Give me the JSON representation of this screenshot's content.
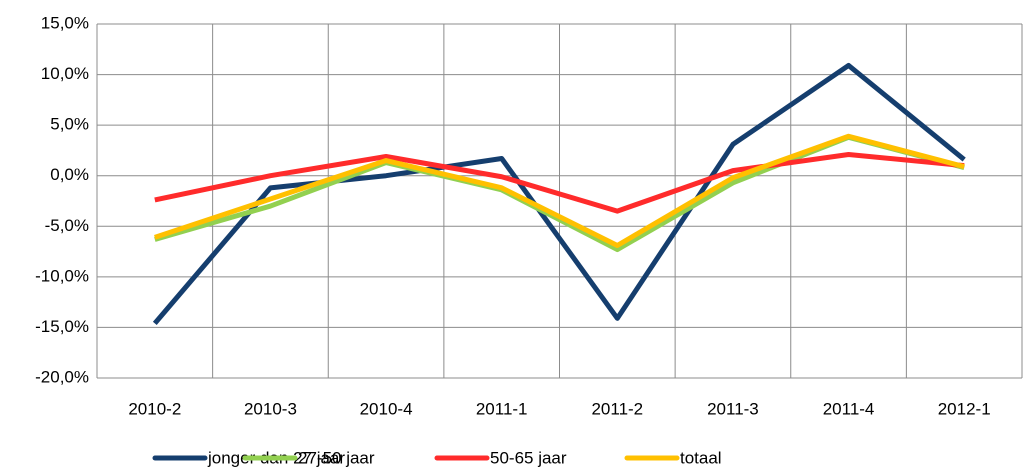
{
  "chart_data": {
    "type": "line",
    "categories": [
      "2010-2",
      "2010-3",
      "2010-4",
      "2011-1",
      "2011-2",
      "2011-3",
      "2011-4",
      "2012-1"
    ],
    "series": [
      {
        "name": "jonger dan 27 jaar",
        "color": "#153e6e",
        "values": [
          -14.6,
          -1.2,
          0,
          1.7,
          -14.1,
          3.1,
          10.9,
          1.6
        ]
      },
      {
        "name": "27-50 jaar",
        "color": "#92d050",
        "values": [
          -6.3,
          -3.0,
          1.3,
          -1.4,
          -7.3,
          -0.7,
          3.8,
          0.8
        ]
      },
      {
        "name": "50-65 jaar",
        "color": "#ff2b2b",
        "values": [
          -2.4,
          0,
          1.9,
          -0.1,
          -3.5,
          0.5,
          2.1,
          1.0
        ]
      },
      {
        "name": "totaal",
        "color": "#ffc000",
        "values": [
          -6.1,
          -2.3,
          1.5,
          -1.2,
          -6.9,
          -0.2,
          3.9,
          0.9
        ]
      }
    ],
    "ylim": [
      -20,
      15
    ],
    "yticks": [
      {
        "value": -20,
        "label": "-20,0%"
      },
      {
        "value": -15,
        "label": "-15,0%"
      },
      {
        "value": -10,
        "label": "-10,0%"
      },
      {
        "value": -5,
        "label": "-5,0%"
      },
      {
        "value": 0,
        "label": "0,0%"
      },
      {
        "value": 5,
        "label": "5,0%"
      },
      {
        "value": 10,
        "label": "10,0%"
      },
      {
        "value": 15,
        "label": "15,0%"
      }
    ],
    "grid": true,
    "legend": "bottom"
  }
}
